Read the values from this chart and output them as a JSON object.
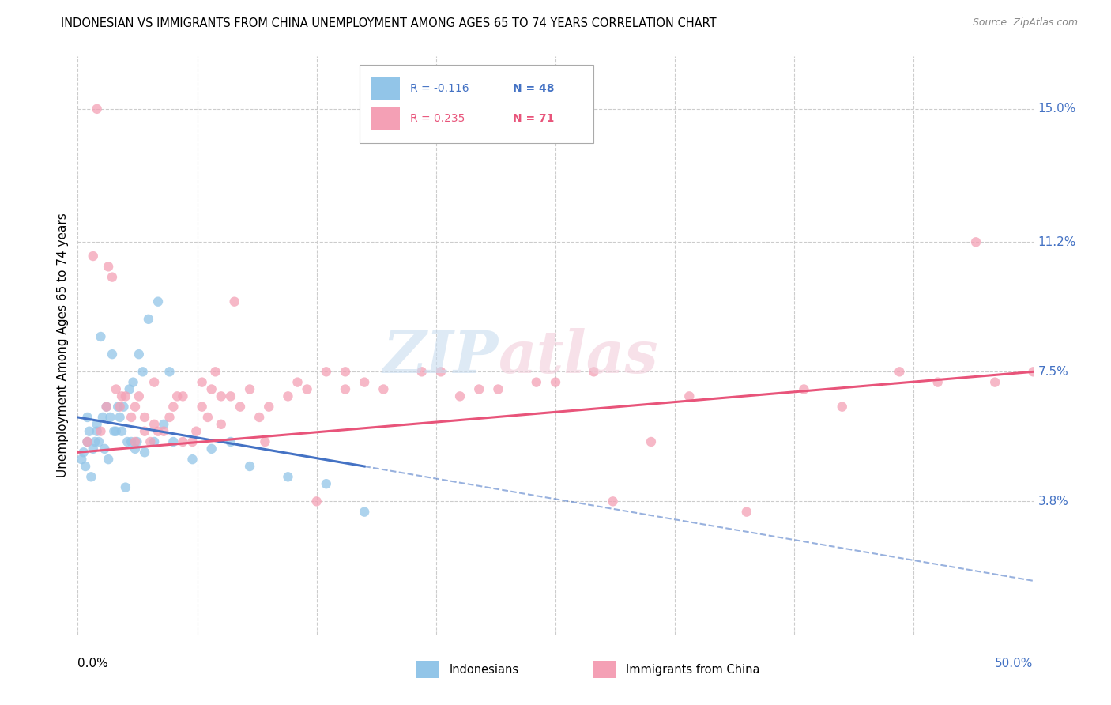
{
  "title": "INDONESIAN VS IMMIGRANTS FROM CHINA UNEMPLOYMENT AMONG AGES 65 TO 74 YEARS CORRELATION CHART",
  "source": "Source: ZipAtlas.com",
  "ylabel": "Unemployment Among Ages 65 to 74 years",
  "ytick_labels": [
    "3.8%",
    "7.5%",
    "11.2%",
    "15.0%"
  ],
  "ytick_values": [
    3.8,
    7.5,
    11.2,
    15.0
  ],
  "xlim": [
    0.0,
    50.0
  ],
  "ylim": [
    0.0,
    16.5
  ],
  "legend_blue_r": "R = -0.116",
  "legend_blue_n": "N = 48",
  "legend_pink_r": "R = 0.235",
  "legend_pink_n": "N = 71",
  "legend_label_blue": "Indonesians",
  "legend_label_pink": "Immigrants from China",
  "color_blue": "#92C5E8",
  "color_pink": "#F4A0B5",
  "color_blue_line": "#4472C4",
  "color_pink_line": "#E8547A",
  "blue_line_start_x": 0.0,
  "blue_line_start_y": 6.2,
  "blue_line_end_x": 15.0,
  "blue_line_end_y": 4.8,
  "blue_line_solid_end": 15.0,
  "pink_line_start_x": 0.0,
  "pink_line_start_y": 5.2,
  "pink_line_end_x": 50.0,
  "pink_line_end_y": 7.5,
  "blue_scatter_x": [
    0.2,
    0.3,
    0.4,
    0.5,
    0.5,
    0.6,
    0.7,
    0.8,
    0.9,
    1.0,
    1.0,
    1.1,
    1.2,
    1.3,
    1.4,
    1.5,
    1.6,
    1.7,
    1.8,
    1.9,
    2.0,
    2.1,
    2.2,
    2.3,
    2.4,
    2.5,
    2.6,
    2.7,
    2.8,
    2.9,
    3.0,
    3.1,
    3.2,
    3.4,
    3.5,
    3.7,
    4.0,
    4.2,
    4.5,
    4.8,
    5.0,
    6.0,
    7.0,
    8.0,
    9.0,
    11.0,
    13.0,
    15.0
  ],
  "blue_scatter_y": [
    5.0,
    5.2,
    4.8,
    6.2,
    5.5,
    5.8,
    4.5,
    5.3,
    5.5,
    6.0,
    5.8,
    5.5,
    8.5,
    6.2,
    5.3,
    6.5,
    5.0,
    6.2,
    8.0,
    5.8,
    5.8,
    6.5,
    6.2,
    5.8,
    6.5,
    4.2,
    5.5,
    7.0,
    5.5,
    7.2,
    5.3,
    5.5,
    8.0,
    7.5,
    5.2,
    9.0,
    5.5,
    9.5,
    6.0,
    7.5,
    5.5,
    5.0,
    5.3,
    5.5,
    4.8,
    4.5,
    4.3,
    3.5
  ],
  "pink_scatter_x": [
    0.5,
    0.8,
    1.0,
    1.2,
    1.5,
    1.6,
    1.8,
    2.0,
    2.2,
    2.3,
    2.5,
    2.8,
    3.0,
    3.0,
    3.2,
    3.5,
    3.5,
    3.8,
    4.0,
    4.0,
    4.2,
    4.5,
    4.8,
    5.0,
    5.2,
    5.5,
    5.5,
    6.0,
    6.2,
    6.5,
    6.5,
    6.8,
    7.0,
    7.2,
    7.5,
    7.5,
    8.0,
    8.2,
    8.5,
    9.0,
    9.5,
    9.8,
    10.0,
    11.0,
    11.5,
    12.0,
    12.5,
    13.0,
    14.0,
    14.0,
    15.0,
    16.0,
    18.0,
    19.0,
    20.0,
    21.0,
    22.0,
    24.0,
    25.0,
    27.0,
    28.0,
    30.0,
    32.0,
    35.0,
    38.0,
    40.0,
    43.0,
    45.0,
    47.0,
    48.0,
    50.0
  ],
  "pink_scatter_y": [
    5.5,
    10.8,
    15.0,
    5.8,
    6.5,
    10.5,
    10.2,
    7.0,
    6.5,
    6.8,
    6.8,
    6.2,
    6.5,
    5.5,
    6.8,
    6.2,
    5.8,
    5.5,
    6.0,
    7.2,
    5.8,
    5.8,
    6.2,
    6.5,
    6.8,
    5.5,
    6.8,
    5.5,
    5.8,
    7.2,
    6.5,
    6.2,
    7.0,
    7.5,
    6.0,
    6.8,
    6.8,
    9.5,
    6.5,
    7.0,
    6.2,
    5.5,
    6.5,
    6.8,
    7.2,
    7.0,
    3.8,
    7.5,
    7.5,
    7.0,
    7.2,
    7.0,
    7.5,
    7.5,
    6.8,
    7.0,
    7.0,
    7.2,
    7.2,
    7.5,
    3.8,
    5.5,
    6.8,
    3.5,
    7.0,
    6.5,
    7.5,
    7.2,
    11.2,
    7.2,
    7.5
  ]
}
